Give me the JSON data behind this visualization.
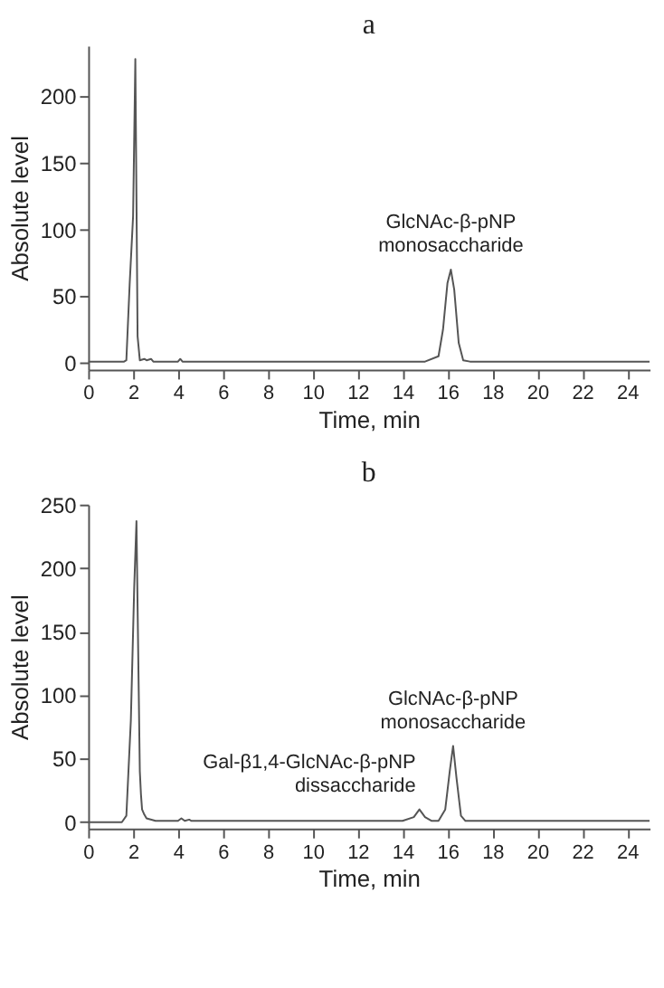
{
  "chart_data": [
    {
      "type": "line",
      "title": "a",
      "xlabel": "Time, min",
      "ylabel": "Absolute level",
      "xlim": [
        0,
        25
      ],
      "xticks": [
        0,
        2,
        4,
        6,
        8,
        10,
        12,
        14,
        16,
        18,
        20,
        22,
        24
      ],
      "ylim": [
        -5,
        238
      ],
      "yticks": [
        0,
        50,
        100,
        150,
        200
      ],
      "grid": false,
      "marker": "none",
      "line_style": "solid",
      "series": [
        {
          "color": "#555555",
          "x": [
            0,
            1.6,
            1.7,
            1.85,
            2.0,
            2.1,
            2.2,
            2.3,
            2.5,
            2.6,
            2.8,
            2.9,
            3.5,
            4.0,
            4.1,
            4.2,
            10,
            15,
            15.6,
            15.8,
            16.0,
            16.15,
            16.3,
            16.5,
            16.7,
            17,
            23.5,
            25
          ],
          "values": [
            1,
            1,
            2,
            60,
            110,
            228,
            20,
            2,
            3,
            2,
            3,
            1,
            1,
            1,
            3,
            1,
            1,
            1,
            5,
            25,
            60,
            70,
            55,
            15,
            2,
            1,
            1,
            1
          ]
        }
      ],
      "annotations": [
        {
          "text": "GlcNAc-β-pNP\nmonosaccharide",
          "x": 16.15,
          "y": 70
        }
      ]
    },
    {
      "type": "line",
      "title": "b",
      "xlabel": "Time, min",
      "ylabel": "Absolute level",
      "xlim": [
        0,
        25
      ],
      "xticks": [
        0,
        2,
        4,
        6,
        8,
        10,
        12,
        14,
        16,
        18,
        20,
        22,
        24
      ],
      "ylim": [
        -5,
        250
      ],
      "yticks": [
        0,
        50,
        100,
        150,
        200,
        250
      ],
      "grid": false,
      "marker": "none",
      "line_style": "solid",
      "series": [
        {
          "color": "#555555",
          "x": [
            0,
            1.5,
            1.7,
            1.9,
            2.05,
            2.15,
            2.2,
            2.3,
            2.35,
            2.4,
            2.5,
            2.6,
            3,
            4,
            4.15,
            4.3,
            4.5,
            4.6,
            14,
            14.5,
            14.75,
            15,
            15.3,
            15.6,
            15.9,
            16.1,
            16.25,
            16.4,
            16.6,
            16.8,
            25
          ],
          "values": [
            0,
            0,
            5,
            80,
            185,
            237,
            170,
            40,
            22,
            10,
            6,
            3,
            1,
            1,
            3,
            1,
            2,
            1,
            1,
            4,
            10,
            4,
            1,
            1,
            10,
            40,
            60,
            35,
            5,
            1,
            1
          ]
        }
      ],
      "annotations": [
        {
          "text": "Gal-β1,4-GlcNAc-β-pNP\ndissaccharide",
          "x": 14.75,
          "y": 10
        },
        {
          "text": "GlcNAc-β-pNP\nmonosaccharide",
          "x": 16.25,
          "y": 60
        }
      ]
    }
  ]
}
